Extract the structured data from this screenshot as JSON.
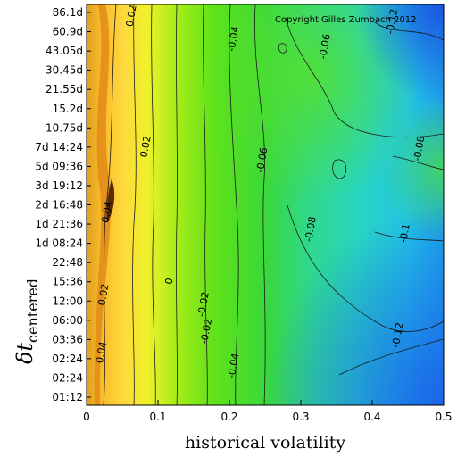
{
  "chart_data": {
    "type": "heatmap",
    "title": "",
    "copyright": "Copyright Gilles Zumbach 2012",
    "xlabel": "historical volatility",
    "ylabel_main": "δt",
    "ylabel_sub": "centered",
    "xlim": [
      0,
      0.5
    ],
    "x_ticks": [
      "0",
      "0.1",
      "0.2",
      "0.3",
      "0.4",
      "0.5"
    ],
    "y_ticks": [
      "01:12",
      "02:24",
      "02:24",
      "03:36",
      "06:00",
      "12:00",
      "15:36",
      "22:48",
      "1d 08:24",
      "1d 21:36",
      "2d 16:48",
      "3d 19:12",
      "5d 09:36",
      "7d 14:24",
      "10.75d",
      "15.2d",
      "21.55d",
      "30.45d",
      "43.05d",
      "60.9d",
      "86.1d"
    ],
    "colormap": [
      "#1f6fe6",
      "#15b8e8",
      "#33e6b0",
      "#3fe84a",
      "#9ef21c",
      "#ffe54a",
      "#f5a623",
      "#5a2a05"
    ],
    "contour_labels": [
      {
        "text": "0.02",
        "x": 0.067,
        "y": 19.8
      },
      {
        "text": "0.02",
        "x": 0.087,
        "y": 13.0
      },
      {
        "text": "0.04",
        "x": 0.033,
        "y": 9.6
      },
      {
        "text": "0.02",
        "x": 0.028,
        "y": 5.3
      },
      {
        "text": "0.04",
        "x": 0.025,
        "y": 2.3
      },
      {
        "text": "0",
        "x": 0.12,
        "y": 6.0
      },
      {
        "text": "-0.02",
        "x": 0.168,
        "y": 4.8
      },
      {
        "text": "-0.02",
        "x": 0.172,
        "y": 3.4
      },
      {
        "text": "-0.04",
        "x": 0.21,
        "y": 18.6
      },
      {
        "text": "-0.04",
        "x": 0.21,
        "y": 1.6
      },
      {
        "text": "-0.06",
        "x": 0.25,
        "y": 12.3
      },
      {
        "text": "-0.06",
        "x": 0.338,
        "y": 18.2
      },
      {
        "text": "-0.08",
        "x": 0.318,
        "y": 8.7
      },
      {
        "text": "-0.08",
        "x": 0.47,
        "y": 12.9
      },
      {
        "text": "-0.1",
        "x": 0.45,
        "y": 8.5
      },
      {
        "text": "-0.12",
        "x": 0.432,
        "y": 19.5
      },
      {
        "text": "-0.12",
        "x": 0.44,
        "y": 3.2
      }
    ]
  }
}
